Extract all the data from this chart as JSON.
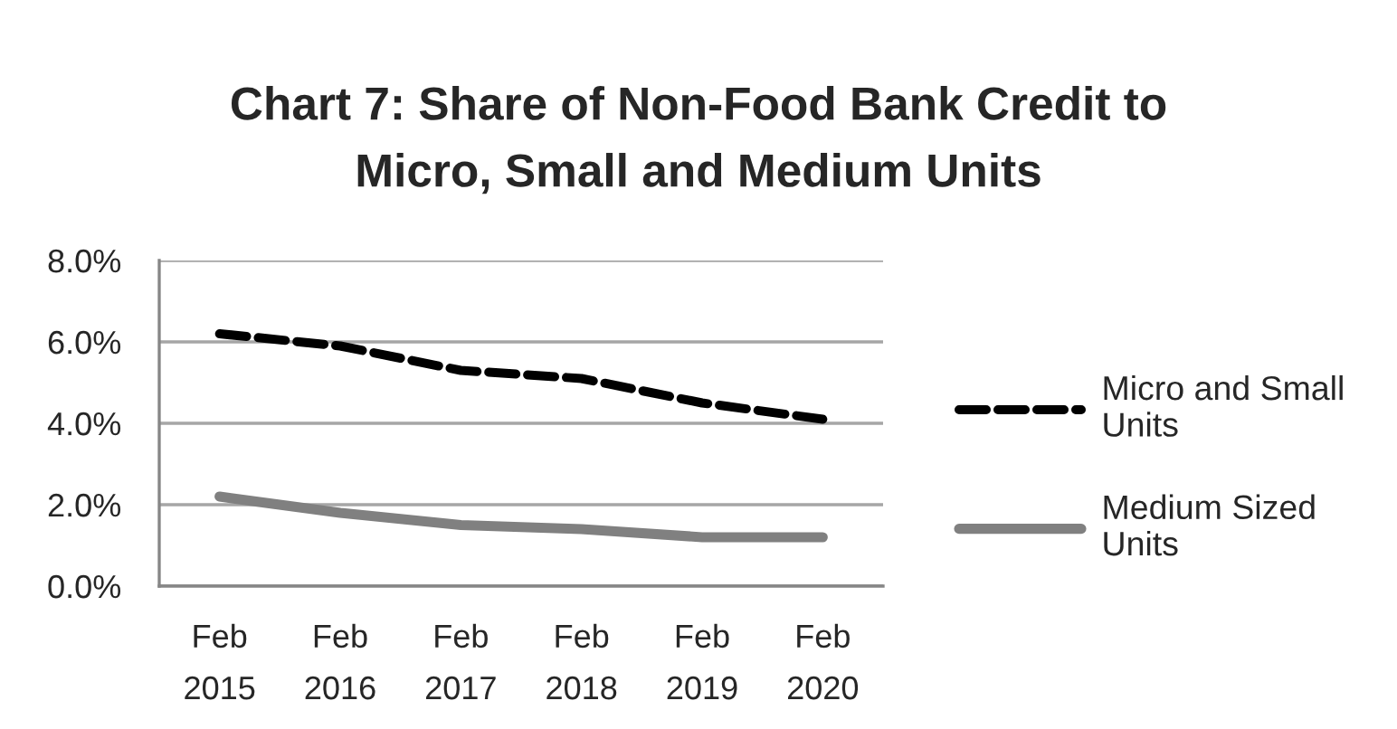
{
  "chart_data": {
    "type": "line",
    "title": "Chart 7: Share of Non-Food Bank Credit to\nMicro, Small and Medium Units",
    "categories": [
      "Feb\n2015",
      "Feb\n2016",
      "Feb\n2017",
      "Feb\n2018",
      "Feb\n2019",
      "Feb\n2020"
    ],
    "ylim": [
      0,
      8
    ],
    "yticks": [
      {
        "value": 0,
        "label": "0.0%"
      },
      {
        "value": 2,
        "label": "2.0%"
      },
      {
        "value": 4,
        "label": "4.0%"
      },
      {
        "value": 6,
        "label": "6.0%"
      },
      {
        "value": 8,
        "label": "8.0%"
      }
    ],
    "grid": "y",
    "legend": "right",
    "series": [
      {
        "name": "Micro and Small\nUnits",
        "color": "#000000",
        "line_style": "dashed",
        "values": [
          6.2,
          5.9,
          5.3,
          5.1,
          4.5,
          4.1
        ]
      },
      {
        "name": "Medium Sized\nUnits",
        "color": "#808080",
        "line_style": "solid",
        "values": [
          2.2,
          1.8,
          1.5,
          1.4,
          1.2,
          1.2
        ]
      }
    ]
  }
}
